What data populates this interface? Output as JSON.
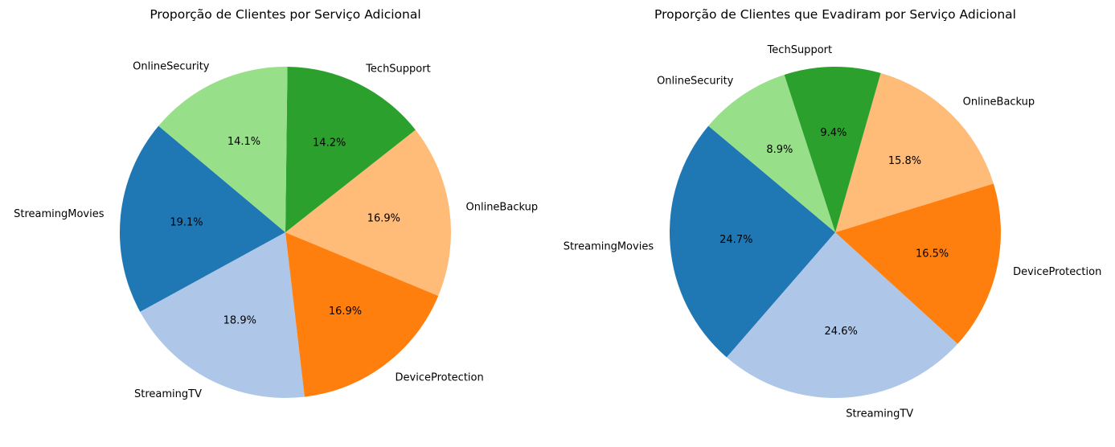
{
  "chart_data": [
    {
      "type": "pie",
      "title": "Proporção de Clientes por Serviço Adicional",
      "start_angle_deg": 140,
      "direction": "counterclockwise",
      "slices": [
        {
          "label": "StreamingMovies",
          "value": 19.1,
          "pct_label": "19.1%",
          "color": "#1f77b4"
        },
        {
          "label": "StreamingTV",
          "value": 18.9,
          "pct_label": "18.9%",
          "color": "#aec7e8"
        },
        {
          "label": "DeviceProtection",
          "value": 16.9,
          "pct_label": "16.9%",
          "color": "#ff7f0e"
        },
        {
          "label": "OnlineBackup",
          "value": 16.9,
          "pct_label": "16.9%",
          "color": "#ffbb78"
        },
        {
          "label": "TechSupport",
          "value": 14.2,
          "pct_label": "14.2%",
          "color": "#2ca02c"
        },
        {
          "label": "OnlineSecurity",
          "value": 14.1,
          "pct_label": "14.1%",
          "color": "#98df8a"
        }
      ]
    },
    {
      "type": "pie",
      "title": "Proporção de Clientes que Evadiram por Serviço Adicional",
      "start_angle_deg": 140,
      "direction": "counterclockwise",
      "slices": [
        {
          "label": "StreamingMovies",
          "value": 24.7,
          "pct_label": "24.7%",
          "color": "#1f77b4"
        },
        {
          "label": "StreamingTV",
          "value": 24.6,
          "pct_label": "24.6%",
          "color": "#aec7e8"
        },
        {
          "label": "DeviceProtection",
          "value": 16.5,
          "pct_label": "16.5%",
          "color": "#ff7f0e"
        },
        {
          "label": "OnlineBackup",
          "value": 15.8,
          "pct_label": "15.8%",
          "color": "#ffbb78"
        },
        {
          "label": "TechSupport",
          "value": 9.4,
          "pct_label": "9.4%",
          "color": "#2ca02c"
        },
        {
          "label": "OnlineSecurity",
          "value": 8.9,
          "pct_label": "8.9%",
          "color": "#98df8a"
        }
      ]
    }
  ]
}
